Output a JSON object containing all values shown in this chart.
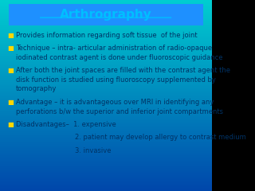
{
  "title": "Arthrography",
  "title_color": "#00BFFF",
  "title_bg_color": "#1E90FF",
  "title_fontsize": 11,
  "bg_gradient_top": "#00CED1",
  "bg_gradient_bottom": "#0047AB",
  "bullet_color": "#FFD700",
  "text_color": "#003366",
  "text_fontsize": 6.0,
  "bullet_char": "■",
  "lines": [
    {
      "bullet": true,
      "text": "Provides information regarding soft tissue  of the joint",
      "indent": 0
    },
    {
      "bullet": true,
      "text": "Technique – intra- articular administration of radio-opaque\niodinated contrast agent is done under fluoroscopic guidance",
      "indent": 0
    },
    {
      "bullet": true,
      "text": "After both the joint spaces are filled with the contrast agent the\ndisk function is studied using fluoroscopy supplemented by\ntomography",
      "indent": 0
    },
    {
      "bullet": true,
      "text": "Advantage – it is advantageous over MRI in identifying any\nperforations b/w the superior and inferior joint compartments",
      "indent": 0
    },
    {
      "bullet": true,
      "text": "Disadvantages–  1. expensive",
      "indent": 0
    },
    {
      "bullet": false,
      "text": "2. patient may develop allergy to contrast medium",
      "indent": 0.28
    },
    {
      "bullet": false,
      "text": "3. invasive",
      "indent": 0.28
    }
  ]
}
